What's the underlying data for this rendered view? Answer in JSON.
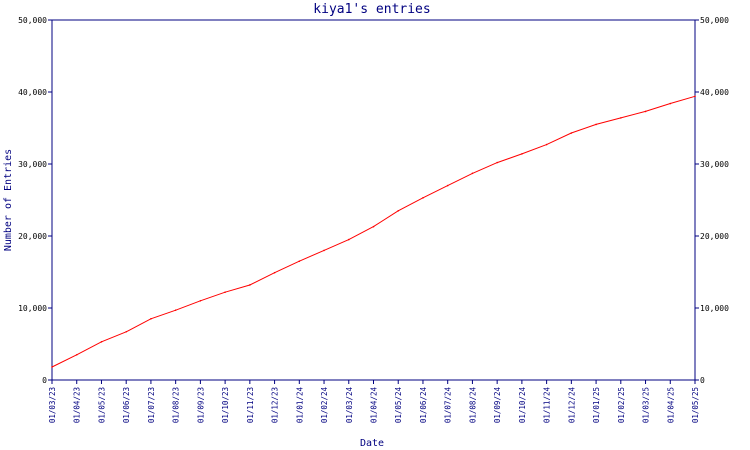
{
  "chart_data": {
    "type": "line",
    "title": "kiya1's entries",
    "xlabel": "Date",
    "ylabel": "Number of Entries",
    "ylim": [
      0,
      50000
    ],
    "yticks": [
      0,
      10000,
      20000,
      30000,
      40000,
      50000
    ],
    "ytick_labels": [
      "0",
      "10,000",
      "20,000",
      "30,000",
      "40,000",
      "50,000"
    ],
    "right_axis_ticks": true,
    "grid": false,
    "line_color": "#ff0000",
    "axis_color": "#000080",
    "x_labels": [
      "01/03/23",
      "01/04/23",
      "01/05/23",
      "01/06/23",
      "01/07/23",
      "01/08/23",
      "01/09/23",
      "01/10/23",
      "01/11/23",
      "01/12/23",
      "01/01/24",
      "01/02/24",
      "01/03/24",
      "01/04/24",
      "01/05/24",
      "01/06/24",
      "01/07/24",
      "01/08/24",
      "01/09/24",
      "01/10/24",
      "01/11/24",
      "01/12/24",
      "01/01/25",
      "01/02/25",
      "01/03/25",
      "01/04/25",
      "01/05/25"
    ],
    "x": [
      "2023-03-01",
      "2023-04-01",
      "2023-05-01",
      "2023-06-01",
      "2023-07-01",
      "2023-08-01",
      "2023-09-01",
      "2023-10-01",
      "2023-11-01",
      "2023-12-01",
      "2024-01-01",
      "2024-02-01",
      "2024-03-01",
      "2024-04-01",
      "2024-05-01",
      "2024-06-01",
      "2024-07-01",
      "2024-08-01",
      "2024-09-01",
      "2024-10-01",
      "2024-11-01",
      "2024-12-01",
      "2025-01-01",
      "2025-02-01",
      "2025-03-01",
      "2025-04-01",
      "2025-05-01"
    ],
    "series": [
      {
        "values": [
          1800,
          3500,
          5300,
          6700,
          8500,
          9700,
          11000,
          12200,
          13200,
          14900,
          16500,
          18000,
          19500,
          21300,
          23500,
          25300,
          27000,
          28700,
          30200,
          31400,
          32700,
          34300,
          35500,
          36400,
          37300,
          38400,
          39400
        ]
      }
    ]
  }
}
